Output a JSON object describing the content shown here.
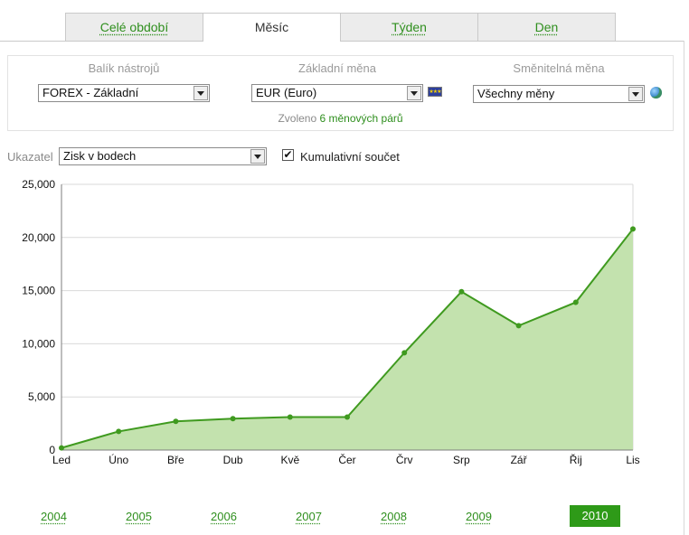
{
  "tabs": [
    {
      "label": "Celé období",
      "active": false
    },
    {
      "label": "Měsíc",
      "active": true
    },
    {
      "label": "Týden",
      "active": false
    },
    {
      "label": "Den",
      "active": false
    }
  ],
  "filters": {
    "toolbox": {
      "label": "Balík nástrojů",
      "value": "FOREX - Základní"
    },
    "base_currency": {
      "label": "Základní měna",
      "value": "EUR (Euro)",
      "flag_icon": "eu-flag-icon"
    },
    "quote_currency": {
      "label": "Směnitelná měna",
      "value": "Všechny měny",
      "icon": "globe-icon"
    },
    "selected_prefix": "Zvoleno",
    "selected_count_text": "6 měnových párů"
  },
  "indicator": {
    "label": "Ukazatel",
    "value": "Zisk v bodech",
    "cumulative_label": "Kumulativní součet",
    "cumulative_checked": true,
    "check_mark": "✔"
  },
  "chart_data": {
    "type": "area",
    "categories": [
      "Led",
      "Úno",
      "Bře",
      "Dub",
      "Kvě",
      "Čer",
      "Črv",
      "Srp",
      "Zář",
      "Řij",
      "Lis"
    ],
    "values": [
      200,
      1750,
      2700,
      2950,
      3100,
      3100,
      9150,
      14900,
      11700,
      13900,
      20800
    ],
    "ylim": [
      0,
      25000
    ],
    "yticks": [
      "0",
      "5,000",
      "10,000",
      "15,000",
      "20,000",
      "25,000"
    ],
    "ytick_values": [
      0,
      5000,
      10000,
      15000,
      20000,
      25000
    ],
    "grid": true,
    "colors": {
      "line": "#3f9a1f",
      "fill": "#c3e2ae",
      "grid": "#d9d9d9",
      "axis": "#7d7d7d"
    }
  },
  "years": [
    {
      "label": "2004",
      "active": false
    },
    {
      "label": "2005",
      "active": false
    },
    {
      "label": "2006",
      "active": false
    },
    {
      "label": "2007",
      "active": false
    },
    {
      "label": "2008",
      "active": false
    },
    {
      "label": "2009",
      "active": false
    },
    {
      "label": "2010",
      "active": true
    }
  ]
}
